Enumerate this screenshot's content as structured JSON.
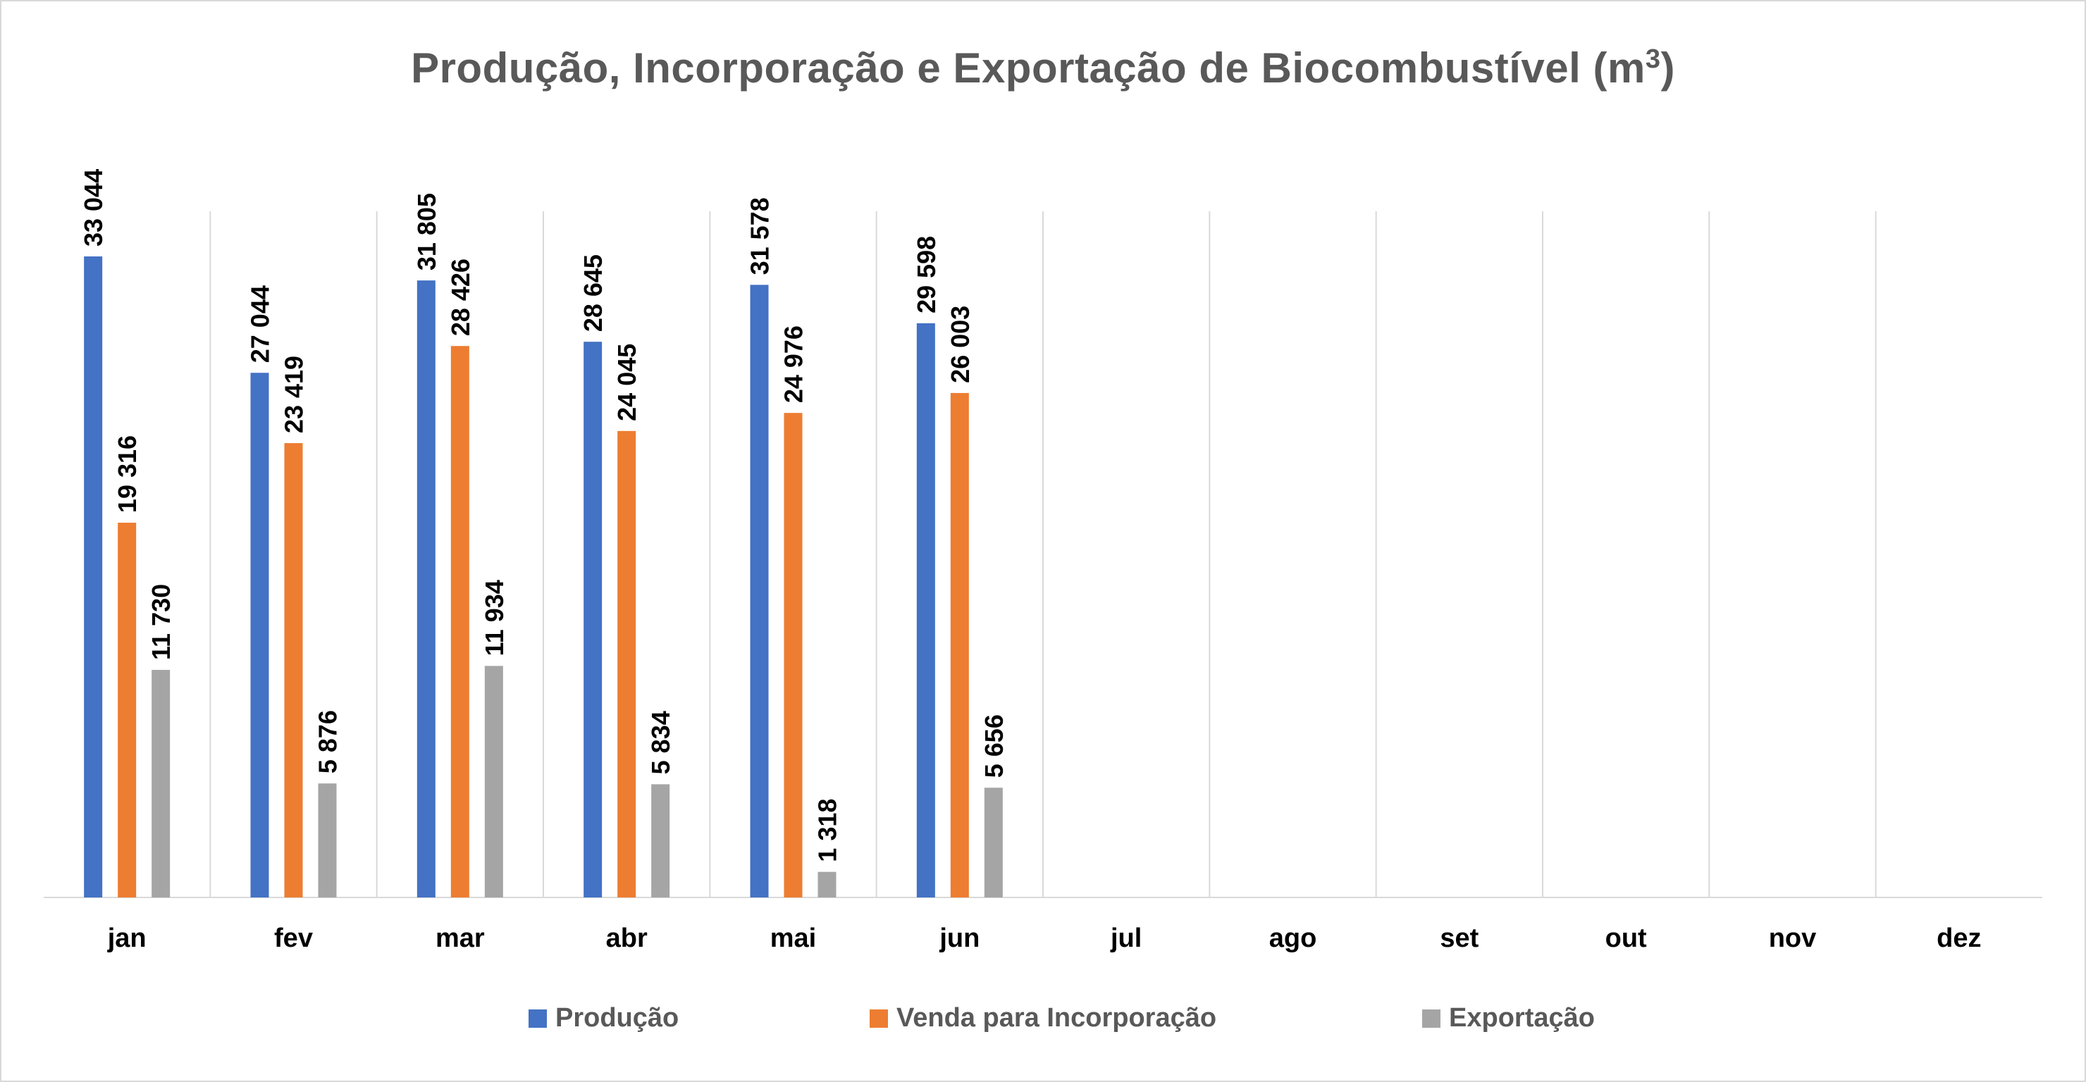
{
  "chart_data": {
    "type": "bar",
    "title": "Produção, Incorporação e Exportação de Biocombustível (m",
    "title_sup": "3",
    "title_close": ")",
    "categories": [
      "jan",
      "fev",
      "mar",
      "abr",
      "mai",
      "jun",
      "jul",
      "ago",
      "set",
      "out",
      "nov",
      "dez"
    ],
    "series": [
      {
        "name": "Produção",
        "color": "#4472c4",
        "values": [
          33044,
          27044,
          31805,
          28645,
          31578,
          29598,
          null,
          null,
          null,
          null,
          null,
          null
        ],
        "labels": [
          "33 044",
          "27 044",
          "31 805",
          "28 645",
          "31 578",
          "29 598",
          "",
          "",
          "",
          "",
          "",
          ""
        ]
      },
      {
        "name": "Venda para Incorporação",
        "color": "#ed7d31",
        "values": [
          19316,
          23419,
          28426,
          24045,
          24976,
          26003,
          null,
          null,
          null,
          null,
          null,
          null
        ],
        "labels": [
          "19 316",
          "23 419",
          "28 426",
          "24 045",
          "24 976",
          "26 003",
          "",
          "",
          "",
          "",
          "",
          ""
        ]
      },
      {
        "name": "Exportação",
        "color": "#a5a5a5",
        "values": [
          11730,
          5876,
          11934,
          5834,
          1318,
          5656,
          null,
          null,
          null,
          null,
          null,
          null
        ],
        "labels": [
          "11 730",
          "5 876",
          "11 934",
          "5 834",
          "1 318",
          "5 656",
          "",
          "",
          "",
          "",
          "",
          ""
        ]
      }
    ],
    "ylim": [
      0,
      35000
    ],
    "grid": "vertical category separators",
    "legend_position": "bottom",
    "xlabel": "",
    "ylabel": ""
  }
}
